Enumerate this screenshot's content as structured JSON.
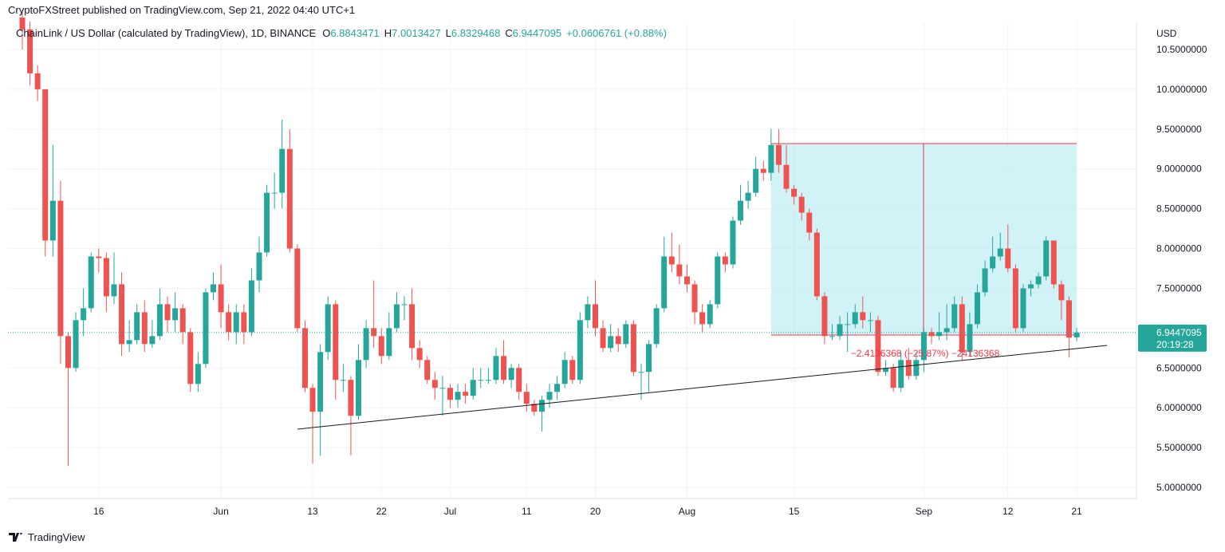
{
  "header": {
    "publisher": "CryptoFXStreet published on TradingView.com, Sep 21, 2022 04:40 UTC+1"
  },
  "footer": {
    "brand": "TradingView"
  },
  "chart_data": {
    "type": "candlestick",
    "symbol": "ChainLink / US Dollar (calculated by TradingView), 1D, BINANCE",
    "ohlc_legend": [
      {
        "label": "O",
        "value": "6.8843471"
      },
      {
        "label": "H",
        "value": "7.0013427"
      },
      {
        "label": "L",
        "value": "6.8329468"
      },
      {
        "label": "C",
        "value": "6.9447095"
      }
    ],
    "change": "+0.0606761 (+0.88%)",
    "y_axis_label": "USD",
    "countdown": "20:19:28",
    "measure_label": "−2.4136368 (−25.87%) −24136368",
    "up_color": "#26a69a",
    "down_color": "#ef5350",
    "grid": true,
    "categories": [
      null,
      null,
      null,
      null,
      null,
      null,
      null,
      null,
      null,
      null,
      "16",
      null,
      null,
      null,
      null,
      null,
      null,
      null,
      null,
      null,
      null,
      null,
      null,
      null,
      null,
      null,
      "Jun",
      null,
      null,
      null,
      null,
      null,
      null,
      null,
      null,
      null,
      null,
      null,
      "13",
      null,
      null,
      null,
      null,
      null,
      null,
      null,
      null,
      "22",
      null,
      null,
      null,
      null,
      null,
      null,
      null,
      null,
      "Jul",
      null,
      null,
      null,
      null,
      null,
      null,
      null,
      null,
      null,
      "11",
      null,
      null,
      null,
      null,
      null,
      null,
      null,
      null,
      "20",
      null,
      null,
      null,
      null,
      null,
      null,
      null,
      null,
      null,
      null,
      null,
      "Aug",
      null,
      null,
      null,
      null,
      null,
      null,
      null,
      null,
      null,
      null,
      null,
      null,
      null,
      "15",
      null,
      null,
      null,
      null,
      null,
      null,
      null,
      null,
      null,
      null,
      null,
      null,
      null,
      null,
      null,
      null,
      "Sep",
      null,
      null,
      null,
      null,
      null,
      null,
      null,
      null,
      null,
      null,
      "12",
      null,
      null,
      null,
      null,
      null,
      null,
      null,
      null,
      "21"
    ],
    "open": [
      10.9,
      10.75,
      10.2,
      10.0,
      8.1,
      8.6,
      6.9,
      6.5,
      7.1,
      7.25,
      7.9,
      7.88,
      7.4,
      7.55,
      6.8,
      6.85,
      7.2,
      6.8,
      6.9,
      7.3,
      7.1,
      7.25,
      6.95,
      6.3,
      6.55,
      7.45,
      7.55,
      7.2,
      6.95,
      7.2,
      6.95,
      7.6,
      7.95,
      8.7,
      8.7,
      9.25,
      8.0,
      7.0,
      6.25,
      5.95,
      6.7,
      7.3,
      6.35,
      6.35,
      5.9,
      6.6,
      7.0,
      6.9,
      6.65,
      7.0,
      7.3,
      7.3,
      6.75,
      6.6,
      6.35,
      6.25,
      6.25,
      6.1,
      6.2,
      6.15,
      6.35,
      6.35,
      6.35,
      6.65,
      6.35,
      6.5,
      6.2,
      6.05,
      5.95,
      6.1,
      6.2,
      6.3,
      6.6,
      6.35,
      7.1,
      7.3,
      7.0,
      6.75,
      6.9,
      6.8,
      7.05,
      6.45,
      6.45,
      6.8,
      7.25,
      7.9,
      7.8,
      7.65,
      7.55,
      7.2,
      7.05,
      7.3,
      7.9,
      7.8,
      8.35,
      8.6,
      8.7,
      9.0,
      8.95,
      9.3,
      9.05,
      8.75,
      8.65,
      8.45,
      8.2,
      7.4,
      6.9,
      6.9,
      7.05,
      7.05,
      7.2,
      7.1,
      7.1,
      6.45,
      6.5,
      6.25,
      6.6,
      6.4,
      6.6,
      6.95,
      6.9,
      6.95,
      7.0,
      7.3,
      6.7,
      7.05,
      7.45,
      7.75,
      7.9,
      8.0,
      7.75,
      7.0,
      7.5,
      7.55,
      7.65,
      8.1,
      7.55,
      7.35,
      6.8843471
    ],
    "high": [
      11.0,
      10.85,
      10.3,
      10.0,
      9.3,
      8.85,
      6.95,
      7.2,
      7.5,
      7.95,
      8.0,
      7.95,
      7.95,
      7.7,
      7.1,
      7.3,
      7.35,
      7.1,
      7.5,
      7.4,
      7.45,
      7.3,
      7.0,
      6.7,
      7.5,
      7.7,
      7.8,
      7.3,
      7.3,
      7.3,
      7.75,
      8.15,
      8.8,
      8.95,
      9.62,
      9.5,
      8.05,
      7.1,
      6.3,
      6.8,
      7.4,
      7.35,
      6.55,
      6.4,
      6.8,
      7.1,
      7.6,
      7.0,
      7.2,
      7.45,
      7.4,
      7.5,
      6.85,
      6.65,
      6.45,
      6.4,
      6.3,
      6.3,
      6.3,
      6.5,
      6.5,
      6.5,
      6.75,
      6.85,
      6.55,
      6.55,
      6.3,
      6.1,
      6.15,
      6.3,
      6.4,
      6.7,
      6.65,
      7.2,
      7.4,
      7.6,
      7.1,
      7.05,
      7.0,
      7.1,
      7.1,
      6.55,
      6.85,
      7.3,
      8.15,
      8.2,
      8.05,
      7.8,
      7.6,
      7.3,
      7.35,
      7.95,
      7.95,
      8.4,
      8.8,
      8.85,
      9.15,
      9.1,
      9.5,
      9.5,
      9.3,
      8.8,
      8.7,
      8.5,
      8.25,
      7.45,
      7.05,
      7.15,
      7.2,
      7.3,
      7.4,
      7.2,
      7.15,
      6.6,
      6.55,
      6.7,
      6.75,
      6.7,
      7.0,
      7.0,
      7.2,
      7.3,
      7.4,
      7.4,
      7.2,
      7.55,
      7.85,
      8.15,
      8.2,
      8.3,
      7.8,
      7.55,
      7.6,
      7.7,
      8.15,
      8.1,
      7.6,
      7.4,
      7.0013427
    ],
    "low": [
      10.5,
      10.05,
      9.85,
      7.9,
      7.9,
      6.55,
      5.27,
      6.45,
      6.9,
      7.2,
      7.7,
      7.2,
      7.3,
      6.65,
      6.7,
      6.8,
      6.7,
      6.75,
      6.85,
      6.95,
      6.95,
      6.8,
      6.2,
      6.2,
      6.5,
      7.35,
      7.0,
      6.85,
      6.8,
      6.8,
      6.9,
      7.45,
      7.9,
      8.5,
      8.5,
      7.95,
      6.95,
      6.2,
      5.3,
      5.4,
      6.6,
      6.1,
      6.2,
      5.4,
      5.85,
      6.5,
      6.75,
      6.55,
      6.6,
      6.95,
      7.1,
      6.6,
      6.5,
      6.3,
      6.1,
      5.9,
      6.0,
      6.0,
      6.05,
      6.1,
      6.25,
      6.3,
      6.3,
      6.3,
      6.25,
      6.1,
      5.95,
      5.9,
      5.7,
      6.0,
      6.1,
      6.25,
      6.3,
      6.3,
      7.0,
      6.9,
      6.7,
      6.7,
      6.7,
      6.75,
      6.4,
      6.1,
      6.2,
      6.75,
      7.2,
      7.7,
      7.55,
      7.45,
      7.05,
      6.95,
      7.0,
      7.25,
      7.7,
      7.75,
      8.3,
      8.5,
      8.65,
      8.85,
      8.85,
      8.95,
      8.7,
      8.55,
      8.35,
      8.1,
      7.35,
      6.8,
      6.85,
      6.85,
      6.7,
      7.0,
      7.0,
      6.95,
      6.4,
      6.4,
      6.2,
      6.2,
      6.35,
      6.35,
      6.45,
      6.8,
      6.85,
      6.85,
      6.95,
      6.6,
      6.65,
      7.0,
      7.4,
      7.7,
      7.85,
      7.7,
      6.95,
      6.95,
      7.4,
      7.5,
      7.6,
      7.5,
      7.1,
      6.63,
      6.8329468
    ],
    "close": [
      10.75,
      10.2,
      10.0,
      8.1,
      8.6,
      6.9,
      6.5,
      7.1,
      7.25,
      7.9,
      7.88,
      7.4,
      7.55,
      6.8,
      6.85,
      7.2,
      6.8,
      6.9,
      7.3,
      7.1,
      7.25,
      6.95,
      6.3,
      6.55,
      7.45,
      7.55,
      7.2,
      6.95,
      7.2,
      6.95,
      7.6,
      7.95,
      8.7,
      8.7,
      9.25,
      8.0,
      7.0,
      6.25,
      5.95,
      6.7,
      7.3,
      6.35,
      6.35,
      5.9,
      6.6,
      7.0,
      6.9,
      6.65,
      7.0,
      7.3,
      7.3,
      6.75,
      6.6,
      6.35,
      6.25,
      6.25,
      6.1,
      6.2,
      6.15,
      6.35,
      6.35,
      6.35,
      6.65,
      6.35,
      6.5,
      6.2,
      6.05,
      5.95,
      6.1,
      6.2,
      6.3,
      6.6,
      6.35,
      7.1,
      7.3,
      7.0,
      6.75,
      6.9,
      6.8,
      7.05,
      6.45,
      6.45,
      6.8,
      7.25,
      7.9,
      7.8,
      7.65,
      7.55,
      7.2,
      7.05,
      7.3,
      7.9,
      7.8,
      8.35,
      8.6,
      8.7,
      9.0,
      8.95,
      9.3,
      9.05,
      8.75,
      8.65,
      8.45,
      8.2,
      7.4,
      6.9,
      6.9,
      7.05,
      7.05,
      7.2,
      7.1,
      7.1,
      6.45,
      6.5,
      6.25,
      6.6,
      6.4,
      6.6,
      6.95,
      6.9,
      6.95,
      7.0,
      7.3,
      6.7,
      7.05,
      7.45,
      7.75,
      7.9,
      8.0,
      7.75,
      7.0,
      7.5,
      7.55,
      7.65,
      8.1,
      7.55,
      7.35,
      6.88,
      6.9447095
    ],
    "ylim": [
      4.86,
      10.84
    ],
    "yticks": [
      {
        "value": 5.0,
        "label": "5.0000000"
      },
      {
        "value": 5.5,
        "label": "5.5000000"
      },
      {
        "value": 6.0,
        "label": "6.0000000"
      },
      {
        "value": 6.5,
        "label": "6.5000000"
      },
      {
        "value": 7.0,
        "label": "7.0000000"
      },
      {
        "value": 7.5,
        "label": "7.5000000"
      },
      {
        "value": 8.0,
        "label": "8.0000000"
      },
      {
        "value": 8.5,
        "label": "8.5000000"
      },
      {
        "value": 9.0,
        "label": "9.0000000"
      },
      {
        "value": 9.5,
        "label": "9.5000000"
      },
      {
        "value": 10.0,
        "label": "10.0000000"
      },
      {
        "value": 10.5,
        "label": "10.5000000"
      }
    ]
  }
}
